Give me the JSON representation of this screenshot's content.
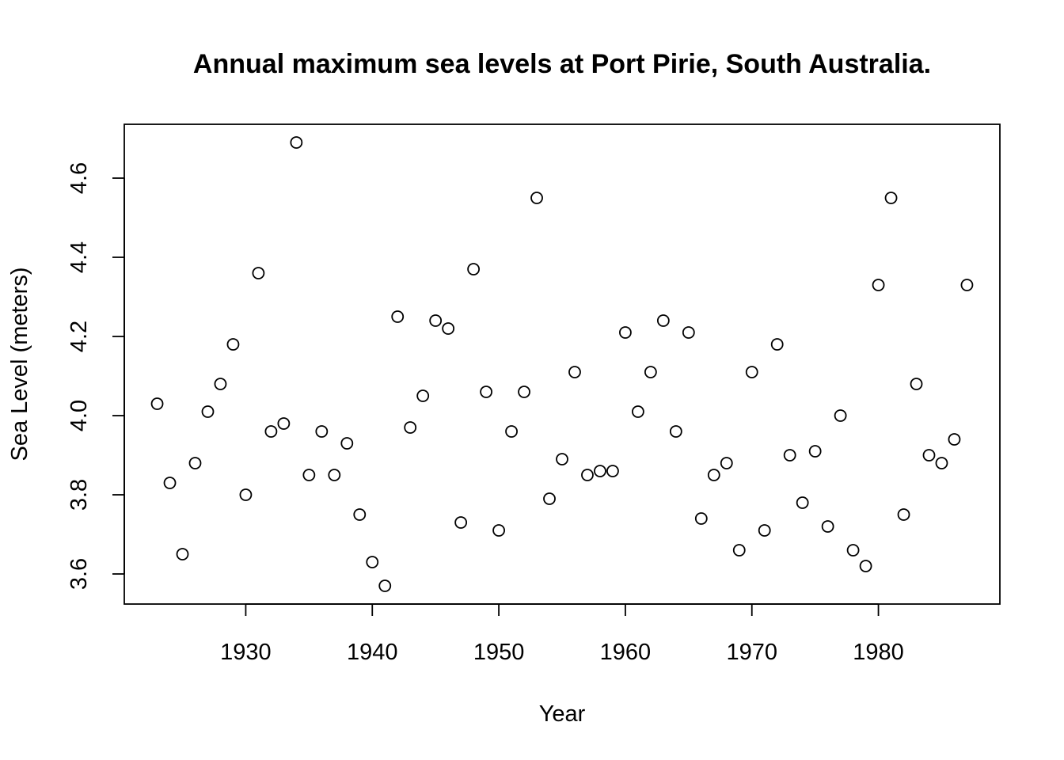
{
  "chart_data": {
    "type": "scatter",
    "title": "Annual maximum sea levels at Port Pirie, South Australia.",
    "xlabel": "Year",
    "ylabel": "Sea Level (meters)",
    "xlim": [
      1920.4,
      1989.6
    ],
    "ylim": [
      3.524,
      4.736
    ],
    "xticks": [
      1930,
      1940,
      1950,
      1960,
      1970,
      1980
    ],
    "yticks": [
      3.6,
      3.8,
      4.0,
      4.2,
      4.4,
      4.6
    ],
    "xtick_labels": [
      "1930",
      "1940",
      "1950",
      "1960",
      "1970",
      "1980"
    ],
    "ytick_labels": [
      "3.6",
      "3.8",
      "4.0",
      "4.2",
      "4.4",
      "4.6"
    ],
    "grid": false,
    "series": [
      {
        "marker": "open-circle",
        "color": "#000000",
        "x": [
          1923,
          1924,
          1925,
          1926,
          1927,
          1928,
          1929,
          1930,
          1931,
          1932,
          1933,
          1934,
          1935,
          1936,
          1937,
          1938,
          1939,
          1940,
          1941,
          1942,
          1943,
          1944,
          1945,
          1946,
          1947,
          1948,
          1949,
          1950,
          1951,
          1952,
          1953,
          1954,
          1955,
          1956,
          1957,
          1958,
          1959,
          1960,
          1961,
          1962,
          1963,
          1964,
          1965,
          1966,
          1967,
          1968,
          1969,
          1970,
          1971,
          1972,
          1973,
          1974,
          1975,
          1976,
          1977,
          1978,
          1979,
          1980,
          1981,
          1982,
          1983,
          1984,
          1985,
          1986,
          1987
        ],
        "y": [
          4.03,
          3.83,
          3.65,
          3.88,
          4.01,
          4.08,
          4.18,
          3.8,
          4.36,
          3.96,
          3.98,
          4.69,
          3.85,
          3.96,
          3.85,
          3.93,
          3.75,
          3.63,
          3.57,
          4.25,
          3.97,
          4.05,
          4.24,
          4.22,
          3.73,
          4.37,
          4.06,
          3.71,
          3.96,
          4.06,
          4.55,
          3.79,
          3.89,
          4.11,
          3.85,
          3.86,
          3.86,
          4.21,
          4.01,
          4.11,
          4.24,
          3.96,
          4.21,
          3.74,
          3.85,
          3.88,
          3.66,
          4.11,
          3.71,
          4.18,
          3.9,
          3.78,
          3.91,
          3.72,
          4.0,
          3.66,
          3.62,
          4.33,
          4.55,
          3.75,
          4.08,
          3.9,
          3.88,
          3.94,
          4.33
        ]
      }
    ]
  }
}
